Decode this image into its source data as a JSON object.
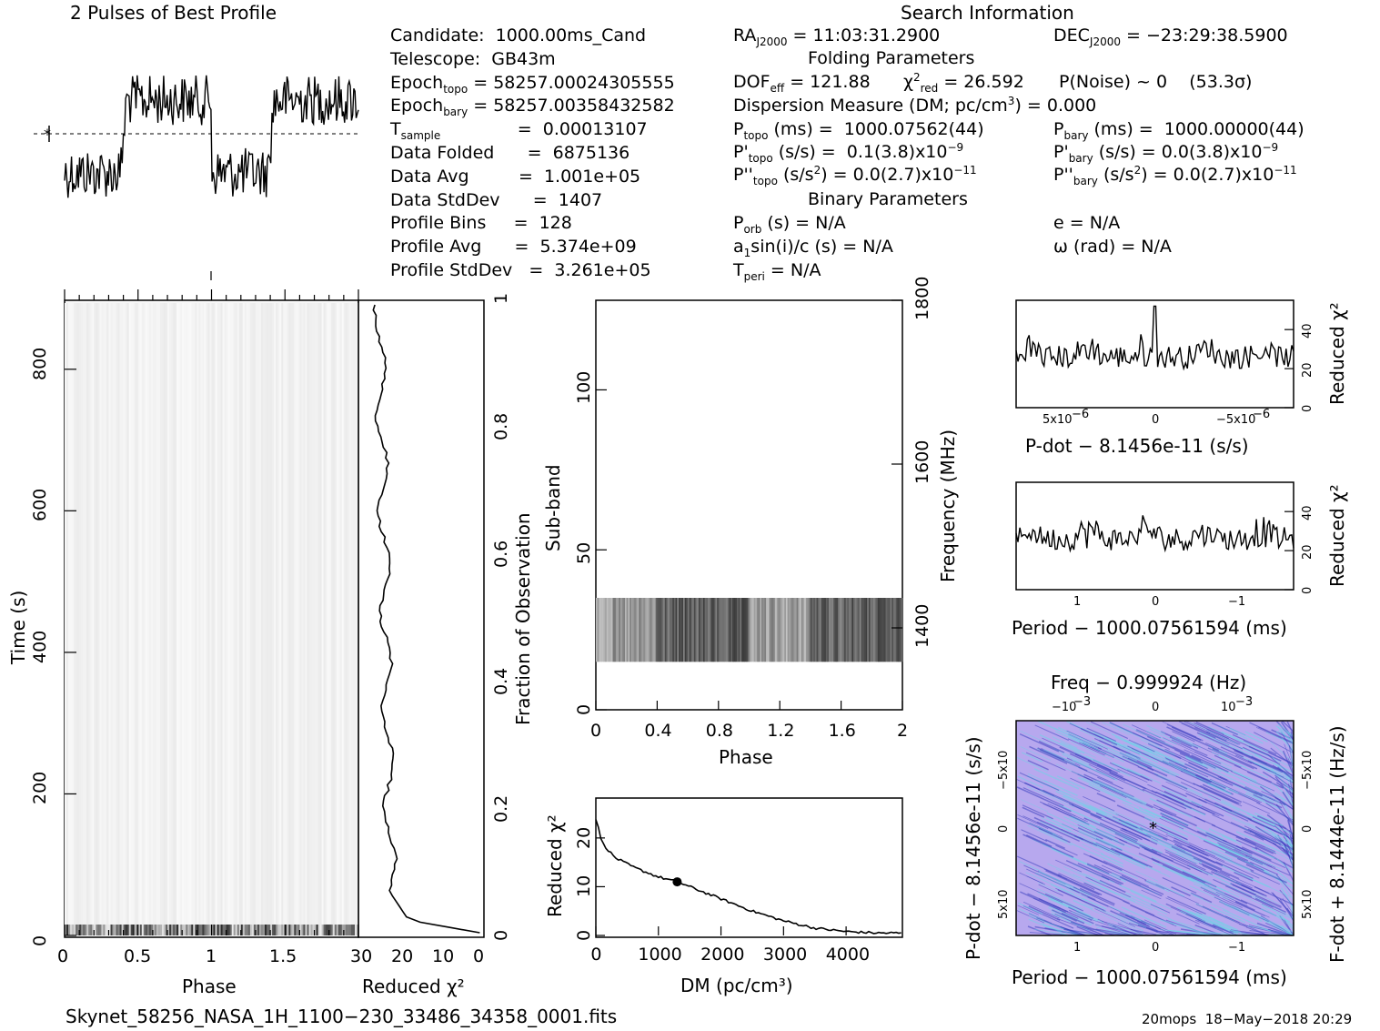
{
  "header": {
    "profile_title": "2 Pulses of Best Profile",
    "search_title": "Search Information"
  },
  "candidate_info": [
    {
      "label": "Candidate:  1000.00ms_Cand"
    },
    {
      "label": "Telescope:  GB43m"
    },
    {
      "label": "Epoch",
      "sub": "topo",
      "value": " = 58257.00024305555"
    },
    {
      "label": "Epoch",
      "sub": "bary",
      "value": " = 58257.00358432582"
    },
    {
      "label": "T",
      "sub": "sample",
      "value": "              =  0.00013107"
    },
    {
      "label": "Data Folded      =  6875136"
    },
    {
      "label": "Data Avg         =  1.001e+05"
    },
    {
      "label": "Data StdDev      =  1407"
    },
    {
      "label": "Profile Bins     =  128"
    },
    {
      "label": "Profile Avg      =  5.374e+09"
    },
    {
      "label": "Profile StdDev   =  3.261e+05"
    }
  ],
  "search_info": {
    "ra": "RA",
    "ra_sub": "J2000",
    "ra_val": " = 11:03:31.2900",
    "dec": "DEC",
    "dec_sub": "J2000",
    "dec_val": " = −23:29:38.5900",
    "folding_title": "Folding Parameters",
    "dof": "DOF",
    "dof_sub": "eff",
    "dof_val": " = 121.88",
    "chi": "χ",
    "chi_sup": "2",
    "chi_sub": "red",
    "chi_val": " = 26.592",
    "pnoise": "P(Noise) ~ 0    (53.3σ)",
    "dm_line": "Dispersion Measure (DM; pc/cm",
    "dm_sup": "3",
    "dm_val": ") = 0.000",
    "ptopo": "P",
    "ptopo_sub": "topo",
    "ptopo_val": " (ms) =  1000.07562(44)",
    "pbary": "P",
    "pbary_sub": "bary",
    "pbary_val": " (ms) =  1000.00000(44)",
    "pdtopo": "P'",
    "pdtopo_sub": "topo",
    "pdtopo_val": " (s/s) =  0.1(3.8)x10",
    "pdtopo_exp": "−9",
    "pdbary": "P'",
    "pdbary_sub": "bary",
    "pdbary_val": " (s/s) = 0.0(3.8)x10",
    "pdbary_exp": "−9",
    "pddtopo": "P''",
    "pddtopo_sub": "topo",
    "pddtopo_val": " (s/s",
    "pddtopo_sup": "2",
    "pddtopo_val2": ") = 0.0(2.7)x10",
    "pddtopo_exp": "−11",
    "pddbary": "P''",
    "pddbary_sub": "bary",
    "pddbary_val": " (s/s",
    "pddbary_sup": "2",
    "pddbary_val2": ") = 0.0(2.7)x10",
    "pddbary_exp": "−11",
    "binary_title": "Binary Parameters",
    "porb": "P",
    "porb_sub": "orb",
    "porb_val": " (s) = N/A",
    "ecc": "e = N/A",
    "a1": "a",
    "a1_sub": "1",
    "a1_val": "sin(i)/c (s) = N/A",
    "omega": "ω (rad) = N/A",
    "tperi": "T",
    "tperi_sub": "peri",
    "tperi_val": " = N/A"
  },
  "footer": {
    "filename": "Skynet_58256_NASA_1H_1100−230_33486_34358_0001.fits",
    "stamp": "20mops  18−May−2018 20:29"
  },
  "colors": {
    "ink": "#000000",
    "ppdot_fill": "#b7a8ee",
    "ppdot_dark": "#3d3fbf",
    "ppdot_cyan": "#6fd4e8"
  },
  "chart_data": [
    {
      "id": "profile",
      "type": "line",
      "title": "2 Pulses of Best Profile",
      "xlabel": "",
      "ylabel": "",
      "pulses": 2,
      "bins": 128,
      "note_shape": "low from phase 0 to ~0.4, high from ~0.4 to ~1.0, repeated"
    },
    {
      "id": "time_phase",
      "type": "heatmap",
      "xlabel": "Phase",
      "ylabel": "Time (s)",
      "xlim": [
        0,
        2
      ],
      "ylim": [
        0,
        900
      ],
      "xticks": [
        "0",
        "0.5",
        "1",
        "1.5"
      ],
      "yticks": [
        "0",
        "200",
        "400",
        "600",
        "800"
      ],
      "y2label": "Fraction of Observation",
      "y2ticks": [
        "0",
        "0.2",
        "0.4",
        "0.6",
        "0.8",
        "1"
      ]
    },
    {
      "id": "time_chi",
      "type": "line",
      "xlabel": "Reduced χ²",
      "xticks": [
        "30",
        "20",
        "10",
        "0"
      ],
      "xlim": [
        30,
        0
      ],
      "points_fraction": [
        0,
        0.02,
        0.05,
        0.1,
        0.2,
        0.3,
        0.4,
        0.5,
        0.6,
        0.7,
        0.8,
        0.9,
        1.0
      ],
      "values": [
        1,
        18,
        22,
        23,
        24,
        25,
        25,
        25,
        26,
        26,
        27,
        26,
        25
      ]
    },
    {
      "id": "subband",
      "type": "heatmap",
      "xlabel": "Phase",
      "ylabel": "Sub-band",
      "xlim": [
        0,
        2
      ],
      "ylim": [
        0,
        128
      ],
      "xticks": [
        "0",
        "0.4",
        "0.8",
        "1.2",
        "1.6",
        "2"
      ],
      "yticks": [
        "0",
        "50",
        "100"
      ],
      "y2label": "Frequency (MHz)",
      "y2ticks": [
        "1400",
        "1600",
        "1800"
      ],
      "band_subbands": [
        15,
        35
      ]
    },
    {
      "id": "dm_chi",
      "type": "line",
      "xlabel": "DM (pc/cm³)",
      "ylabel": "Reduced χ²",
      "xlim": [
        0,
        4900
      ],
      "ylim": [
        0,
        28
      ],
      "xticks": [
        "0",
        "1000",
        "2000",
        "3000",
        "4000"
      ],
      "yticks": [
        "0",
        "10",
        "20"
      ],
      "x": [
        0,
        100,
        300,
        600,
        1000,
        1300,
        1600,
        2000,
        2500,
        3000,
        3500,
        4000,
        4500,
        4900
      ],
      "y": [
        24,
        19,
        16,
        14,
        12,
        11,
        9.5,
        7.5,
        5,
        3,
        1.5,
        0.8,
        0.5,
        0.5
      ],
      "marker": {
        "x": 1300,
        "y": 11
      }
    },
    {
      "id": "pdot_chi",
      "type": "line",
      "xlabel": "P-dot − 8.1456e-11 (s/s)",
      "ylabel": "Reduced χ²",
      "xticks": [
        "5x10⁻⁶",
        "0",
        "−5x10⁻⁶"
      ],
      "yticks": [
        "0",
        "20",
        "40"
      ],
      "ylim": [
        0,
        55
      ],
      "peak": {
        "x": 0,
        "y": 52
      }
    },
    {
      "id": "period_chi",
      "type": "line",
      "xlabel": "Period − 1000.07561594 (ms)",
      "ylabel": "Reduced χ²",
      "xticks": [
        "1",
        "0",
        "−1"
      ],
      "yticks": [
        "0",
        "20",
        "40"
      ],
      "ylim": [
        0,
        52
      ]
    },
    {
      "id": "ppdot",
      "type": "heatmap",
      "title": "Freq − 0.999924 (Hz)",
      "xlabel": "Period − 1000.07561594 (ms)",
      "ylabel": "P-dot − 8.1456e-11 (s/s)",
      "y2label": "F-dot + 8.1444e-11 (Hz/s)",
      "xticks": [
        "1",
        "0",
        "−1"
      ],
      "x2ticks": [
        "−10⁻³",
        "0",
        "10⁻³"
      ],
      "yticks": [
        "5x10⁻⁶",
        "0",
        "−5x10⁻⁶"
      ],
      "y2ticks": [
        "−5x10⁻⁶",
        "0",
        "5x10⁻⁶"
      ],
      "best": {
        "x": 0,
        "y": 0
      }
    }
  ]
}
